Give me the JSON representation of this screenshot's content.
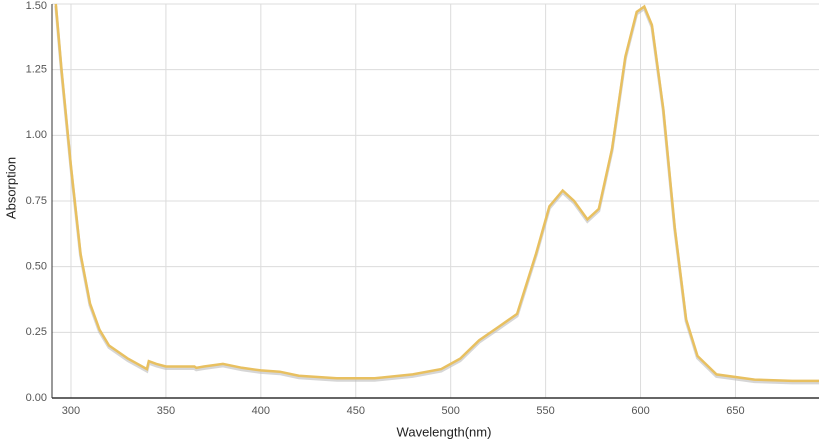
{
  "chart_data": {
    "type": "line",
    "x_label": "Wavelength(nm)",
    "y_label": "Absorption",
    "xlim": [
      290,
      694
    ],
    "ylim": [
      0,
      1.5
    ],
    "xticks": [
      300,
      350,
      400,
      450,
      500,
      550,
      600,
      650
    ],
    "yticks": [
      {
        "value": 0,
        "label": "0.00"
      },
      {
        "value": 0.25,
        "label": "0.25"
      },
      {
        "value": 0.5,
        "label": "0.50"
      },
      {
        "value": 0.75,
        "label": "0.75"
      },
      {
        "value": 1,
        "label": "1.00"
      },
      {
        "value": 1.25,
        "label": "1.25"
      },
      {
        "value": 1.5,
        "label": "1.50"
      }
    ],
    "grid": true,
    "series": [
      {
        "color": "#e8c060",
        "x": [
          292,
          295,
          300,
          305,
          310,
          315,
          320,
          330,
          340,
          341,
          345,
          350,
          360,
          365,
          366,
          370,
          380,
          390,
          400,
          410,
          420,
          440,
          460,
          480,
          495,
          505,
          515,
          525,
          535,
          545,
          552,
          559,
          565,
          572,
          578,
          585,
          592,
          598,
          602,
          606,
          612,
          618,
          624,
          630,
          640,
          660,
          680,
          694
        ],
        "values": [
          1.5,
          1.25,
          0.88,
          0.55,
          0.36,
          0.26,
          0.2,
          0.15,
          0.11,
          0.14,
          0.13,
          0.12,
          0.12,
          0.12,
          0.115,
          0.12,
          0.13,
          0.115,
          0.105,
          0.1,
          0.085,
          0.075,
          0.075,
          0.09,
          0.11,
          0.15,
          0.22,
          0.27,
          0.32,
          0.55,
          0.73,
          0.79,
          0.75,
          0.68,
          0.72,
          0.95,
          1.3,
          1.47,
          1.49,
          1.42,
          1.1,
          0.65,
          0.3,
          0.16,
          0.09,
          0.07,
          0.065,
          0.065
        ]
      }
    ]
  }
}
